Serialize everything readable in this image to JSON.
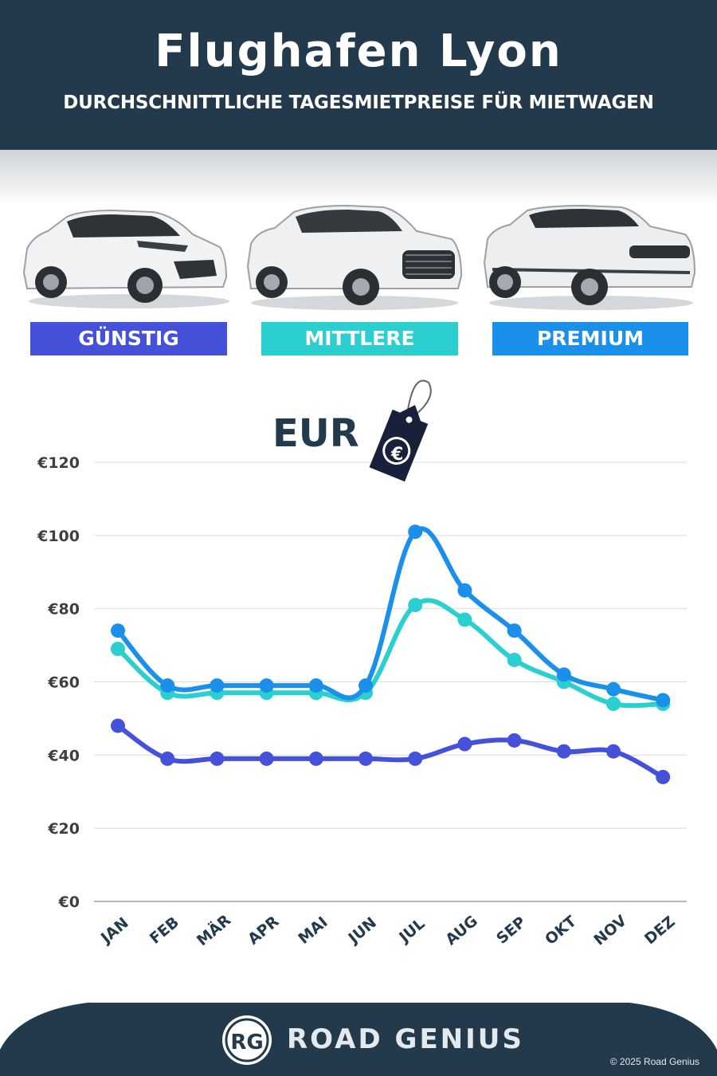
{
  "header": {
    "title": "Flughafen Lyon",
    "subtitle": "DURCHSCHNITTLICHE TAGESMIETPREISE FÜR MIETWAGEN"
  },
  "categories": [
    {
      "label": "GÜNSTIG",
      "color": "#4451d8"
    },
    {
      "label": "MITTLERE",
      "color": "#2bcfcf"
    },
    {
      "label": "PREMIUM",
      "color": "#1b90ea"
    }
  ],
  "currency_label": "EUR",
  "currency_symbol": "€",
  "chart_data": {
    "type": "line",
    "categories": [
      "JAN",
      "FEB",
      "MÄR",
      "APR",
      "MAI",
      "JUN",
      "JUL",
      "AUG",
      "SEP",
      "OKT",
      "NOV",
      "DEZ"
    ],
    "series": [
      {
        "name": "GÜNSTIG",
        "color": "#4451d8",
        "values": [
          48,
          39,
          39,
          39,
          39,
          39,
          39,
          43,
          44,
          41,
          41,
          34
        ]
      },
      {
        "name": "MITTLERE",
        "color": "#2bcfcf",
        "values": [
          69,
          57,
          57,
          57,
          57,
          57,
          81,
          77,
          66,
          60,
          54,
          54
        ]
      },
      {
        "name": "PREMIUM",
        "color": "#1b90ea",
        "values": [
          74,
          59,
          59,
          59,
          59,
          59,
          101,
          85,
          74,
          62,
          58,
          55
        ]
      }
    ],
    "ylim": [
      0,
      120
    ],
    "yticks": [
      0,
      20,
      40,
      60,
      80,
      100,
      120
    ],
    "ytick_labels": [
      "€0",
      "€20",
      "€40",
      "€60",
      "€80",
      "€100",
      "€120"
    ],
    "grid": true
  },
  "footer": {
    "logo_text": "RG",
    "brand": "ROAD GENIUS",
    "copyright": "© 2025 Road Genius"
  }
}
